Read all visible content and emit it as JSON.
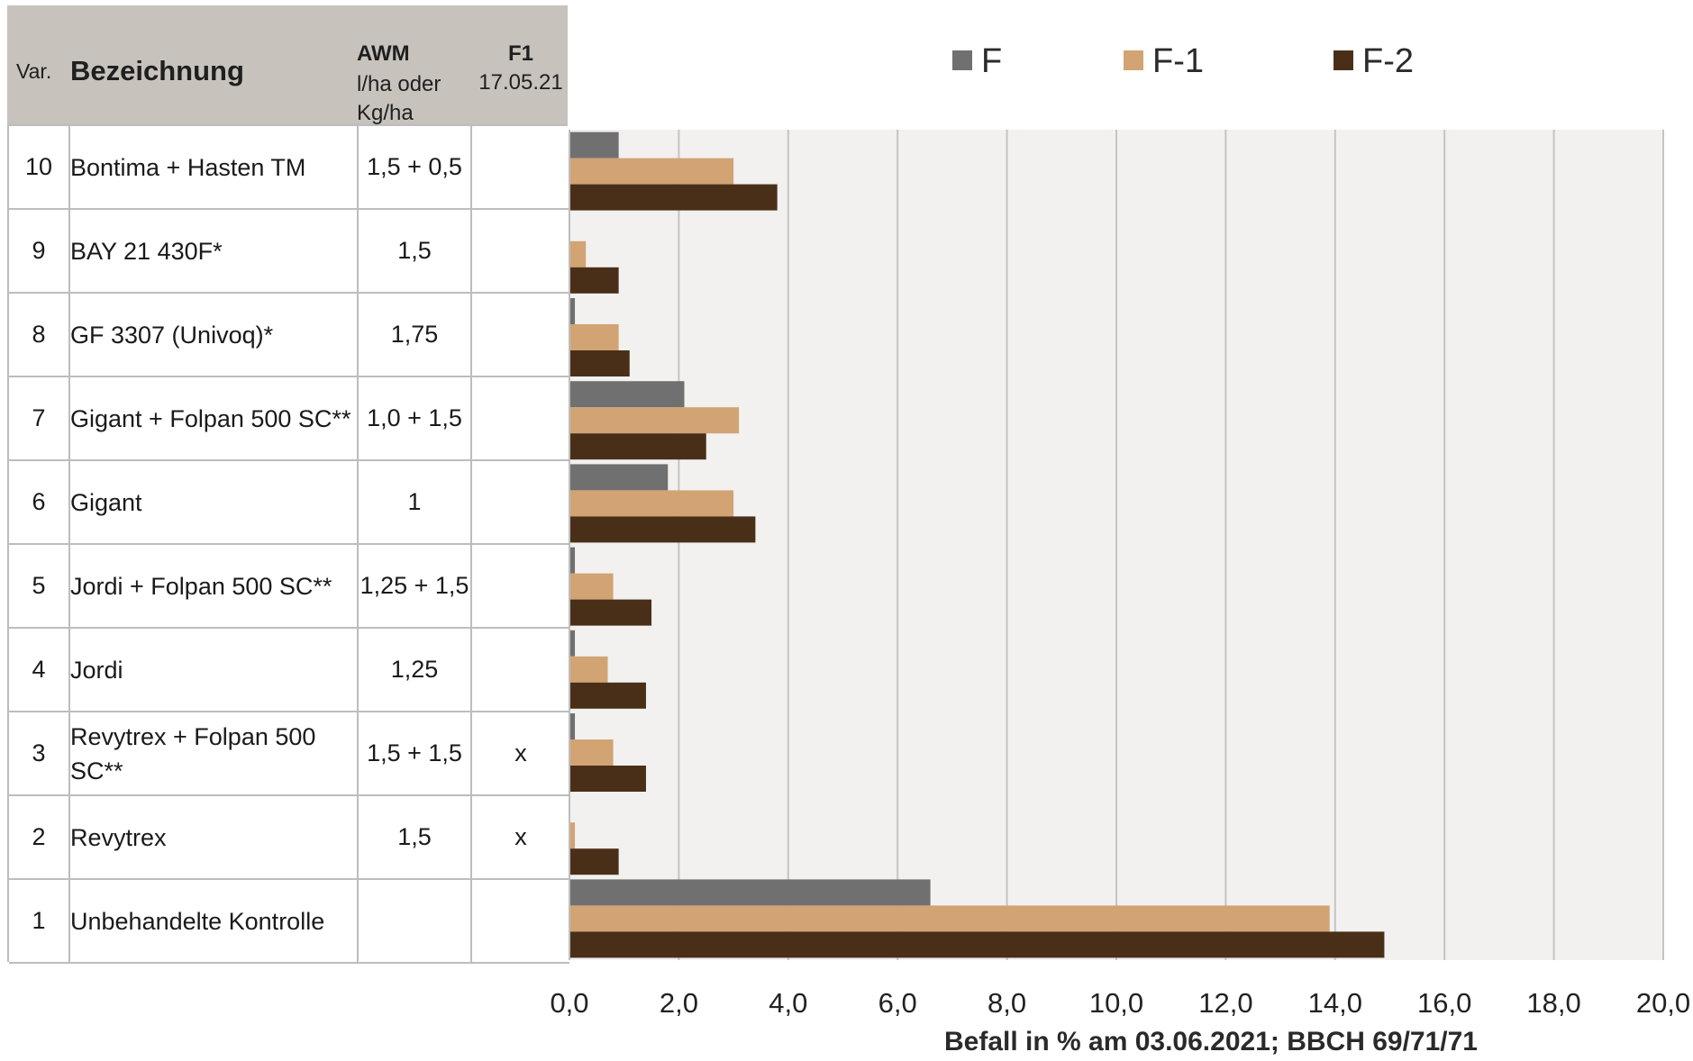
{
  "table": {
    "headers": {
      "var": "Var.",
      "bezeichnung": "Bezeichnung",
      "awm": "AWM",
      "awm_unit_line1": "l/ha oder",
      "awm_unit_line2": "Kg/ha",
      "f1": "F1",
      "f1_date": "17.05.21"
    },
    "rows": [
      {
        "var": "10",
        "name": "Bontima + Hasten TM",
        "awm": "1,5  + 0,5",
        "f1": ""
      },
      {
        "var": "9",
        "name": "BAY 21 430F*",
        "awm": "1,5",
        "f1": ""
      },
      {
        "var": "8",
        "name": "GF 3307 (Univoq)*",
        "awm": "1,75",
        "f1": ""
      },
      {
        "var": "7",
        "name": "Gigant + Folpan 500 SC**",
        "awm": "1,0 + 1,5",
        "f1": ""
      },
      {
        "var": "6",
        "name": "Gigant",
        "awm": "1",
        "f1": ""
      },
      {
        "var": "5",
        "name": "Jordi + Folpan 500 SC**",
        "awm": "1,25 + 1,5",
        "f1": ""
      },
      {
        "var": "4",
        "name": "Jordi",
        "awm": "1,25",
        "f1": ""
      },
      {
        "var": "3",
        "name": "Revytrex + Folpan 500 SC**",
        "awm": "1,5 + 1,5",
        "f1": "x"
      },
      {
        "var": "2",
        "name": "Revytrex",
        "awm": "1,5",
        "f1": "x"
      },
      {
        "var": "1",
        "name": "Unbehandelte Kontrolle",
        "awm": "",
        "f1": ""
      }
    ]
  },
  "chart_data": {
    "type": "bar",
    "orientation": "horizontal",
    "categories": [
      "10",
      "9",
      "8",
      "7",
      "6",
      "5",
      "4",
      "3",
      "2",
      "1"
    ],
    "series": [
      {
        "name": "F",
        "color": "#707070",
        "values": [
          0.9,
          0.0,
          0.1,
          2.1,
          1.8,
          0.1,
          0.1,
          0.1,
          0.0,
          6.6
        ]
      },
      {
        "name": "F-1",
        "color": "#d2a373",
        "values": [
          3.0,
          0.3,
          0.9,
          3.1,
          3.0,
          0.8,
          0.7,
          0.8,
          0.1,
          13.9
        ]
      },
      {
        "name": "F-2",
        "color": "#4a2f18",
        "values": [
          3.8,
          0.9,
          1.1,
          2.5,
          3.4,
          1.5,
          1.4,
          1.4,
          0.9,
          14.9
        ]
      }
    ],
    "xlim": [
      0,
      20
    ],
    "xticks": [
      "0,0",
      "2,0",
      "4,0",
      "6,0",
      "8,0",
      "10,0",
      "12,0",
      "14,0",
      "16,0",
      "18,0",
      "20,0"
    ],
    "xlabel": "Befall in % am 03.06.2021; BBCH 69/71/71",
    "grid": true,
    "legend_position": "top",
    "plot_background": "#f2f1f0",
    "grid_color": "#c4c4c4"
  }
}
